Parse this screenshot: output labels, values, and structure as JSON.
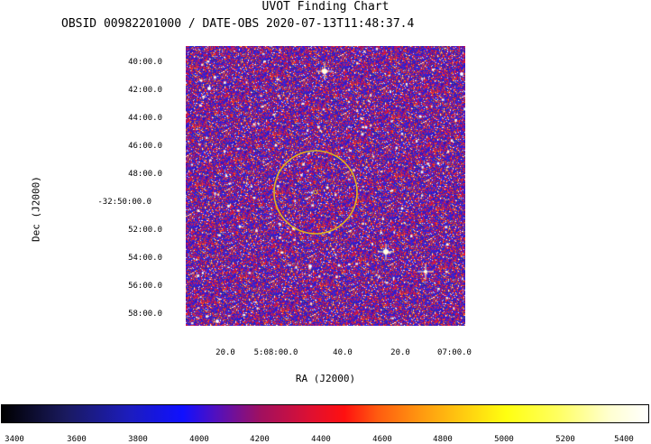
{
  "chart_title": "UVOT Finding Chart",
  "chart_subtitle": "OBSID 00982201000 / DATE-OBS 2020-07-13T11:48:37.4",
  "axes": {
    "ylabel": "Dec (J2000)",
    "xlabel": "RA (J2000)",
    "dec_ticks": [
      "40:00.0",
      "42:00.0",
      "44:00.0",
      "46:00.0",
      "48:00.0",
      "-32:50:00.0",
      "52:00.0",
      "54:00.0",
      "56:00.0",
      "58:00.0"
    ],
    "ra_ticks": [
      "20.0",
      "5:08:00.0",
      "40.0",
      "20.0",
      "07:00.0"
    ]
  },
  "colorbar": {
    "ticks": [
      "3400",
      "3600",
      "3800",
      "4000",
      "4200",
      "4400",
      "4600",
      "4800",
      "5000",
      "5200",
      "5400"
    ]
  },
  "colors": {
    "circle": "#e0b020",
    "background": "#2020c8"
  }
}
